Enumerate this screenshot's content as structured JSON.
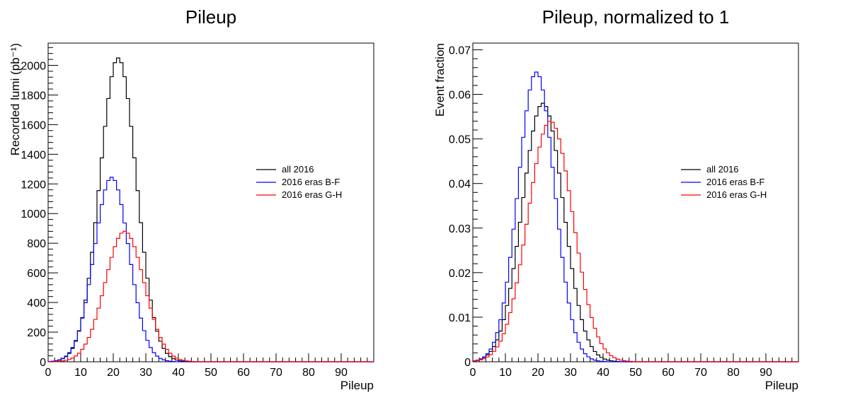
{
  "chart_data": [
    {
      "type": "line",
      "title": "Pileup",
      "xlabel": "Pileup",
      "ylabel": "Recorded lumi (pb⁻¹)",
      "xlim": [
        0,
        100
      ],
      "ylim": [
        0,
        2150
      ],
      "x_ticks": [
        0,
        10,
        20,
        30,
        40,
        50,
        60,
        70,
        80,
        90
      ],
      "x_tick_labels": [
        "0",
        "10",
        "20",
        "30",
        "40",
        "50",
        "60",
        "70",
        "80",
        "90"
      ],
      "y_ticks": [
        0,
        200,
        400,
        600,
        800,
        1000,
        1200,
        1400,
        1600,
        1800,
        2000
      ],
      "y_tick_labels": [
        "0",
        "200",
        "400",
        "600",
        "800",
        "1000",
        "1200",
        "1400",
        "1600",
        "1800",
        "2000"
      ],
      "grid": false,
      "legend": "right",
      "series": [
        {
          "name": "all 2016",
          "color": "#000000",
          "mu": 21.5,
          "sigma": 5.6,
          "peak": 2050
        },
        {
          "name": "2016 eras B-F",
          "color": "#0000ff",
          "mu": 19.5,
          "sigma": 5.3,
          "peak": 1245
        },
        {
          "name": "2016 eras G-H",
          "color": "#ff0000",
          "mu": 23.5,
          "sigma": 6.0,
          "peak": 880
        }
      ]
    },
    {
      "type": "line",
      "title": "Pileup, normalized to 1",
      "xlabel": "Pileup",
      "ylabel": "Event fraction",
      "xlim": [
        0,
        100
      ],
      "ylim": [
        0,
        0.0715
      ],
      "x_ticks": [
        0,
        10,
        20,
        30,
        40,
        50,
        60,
        70,
        80,
        90
      ],
      "x_tick_labels": [
        "0",
        "10",
        "20",
        "30",
        "40",
        "50",
        "60",
        "70",
        "80",
        "90"
      ],
      "y_ticks": [
        0,
        0.01,
        0.02,
        0.03,
        0.04,
        0.05,
        0.06,
        0.07
      ],
      "y_tick_labels": [
        "0",
        "0.01",
        "0.02",
        "0.03",
        "0.04",
        "0.05",
        "0.06",
        "0.07"
      ],
      "grid": false,
      "legend": "right",
      "series": [
        {
          "name": "all 2016",
          "color": "#000000",
          "mu": 21.5,
          "sigma": 6.3,
          "peak": 0.058
        },
        {
          "name": "2016 eras B-F",
          "color": "#0000ff",
          "mu": 19.5,
          "sigma": 5.6,
          "peak": 0.065
        },
        {
          "name": "2016 eras G-H",
          "color": "#ff0000",
          "mu": 23.8,
          "sigma": 6.9,
          "peak": 0.054
        }
      ]
    }
  ]
}
